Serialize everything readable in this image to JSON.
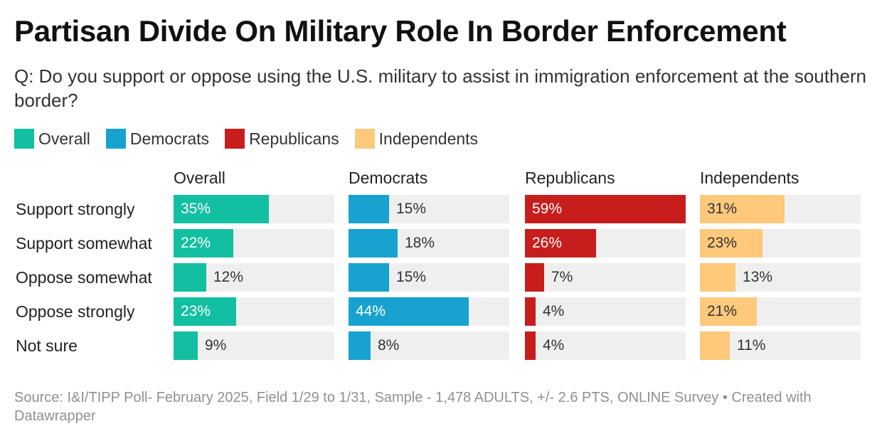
{
  "title": "Partisan Divide On Military Role In Border Enforcement",
  "subtitle": "Q: Do you support or oppose using the U.S. military to assist in immigration enforcement at the southern border?",
  "source": "Source: I&I/TIPP Poll- February 2025, Field 1/29 to 1/31, Sample - 1,478 ADULTS, +/- 2.6 PTS, ONLINE Survey • Created with Datawrapper",
  "legend": [
    {
      "label": "Overall",
      "color": "#12bfa0"
    },
    {
      "label": "Democrats",
      "color": "#17a2cf"
    },
    {
      "label": "Republicans",
      "color": "#c71e1d"
    },
    {
      "label": "Independents",
      "color": "#fec97b"
    }
  ],
  "chart_data": {
    "type": "bar",
    "orientation": "horizontal",
    "layout": "small-multiples",
    "title": "Partisan Divide On Military Role In Border Enforcement",
    "categories": [
      "Support strongly",
      "Support somewhat",
      "Oppose somewhat",
      "Oppose strongly",
      "Not sure"
    ],
    "xlim": [
      0,
      59
    ],
    "unit": "%",
    "series": [
      {
        "name": "Overall",
        "color": "#12bfa0",
        "values": [
          35,
          22,
          12,
          23,
          9
        ]
      },
      {
        "name": "Democrats",
        "color": "#17a2cf",
        "values": [
          15,
          18,
          15,
          44,
          8
        ]
      },
      {
        "name": "Republicans",
        "color": "#c71e1d",
        "values": [
          59,
          26,
          7,
          4,
          4
        ]
      },
      {
        "name": "Independents",
        "color": "#fec97b",
        "values": [
          31,
          23,
          13,
          21,
          11
        ]
      }
    ]
  }
}
